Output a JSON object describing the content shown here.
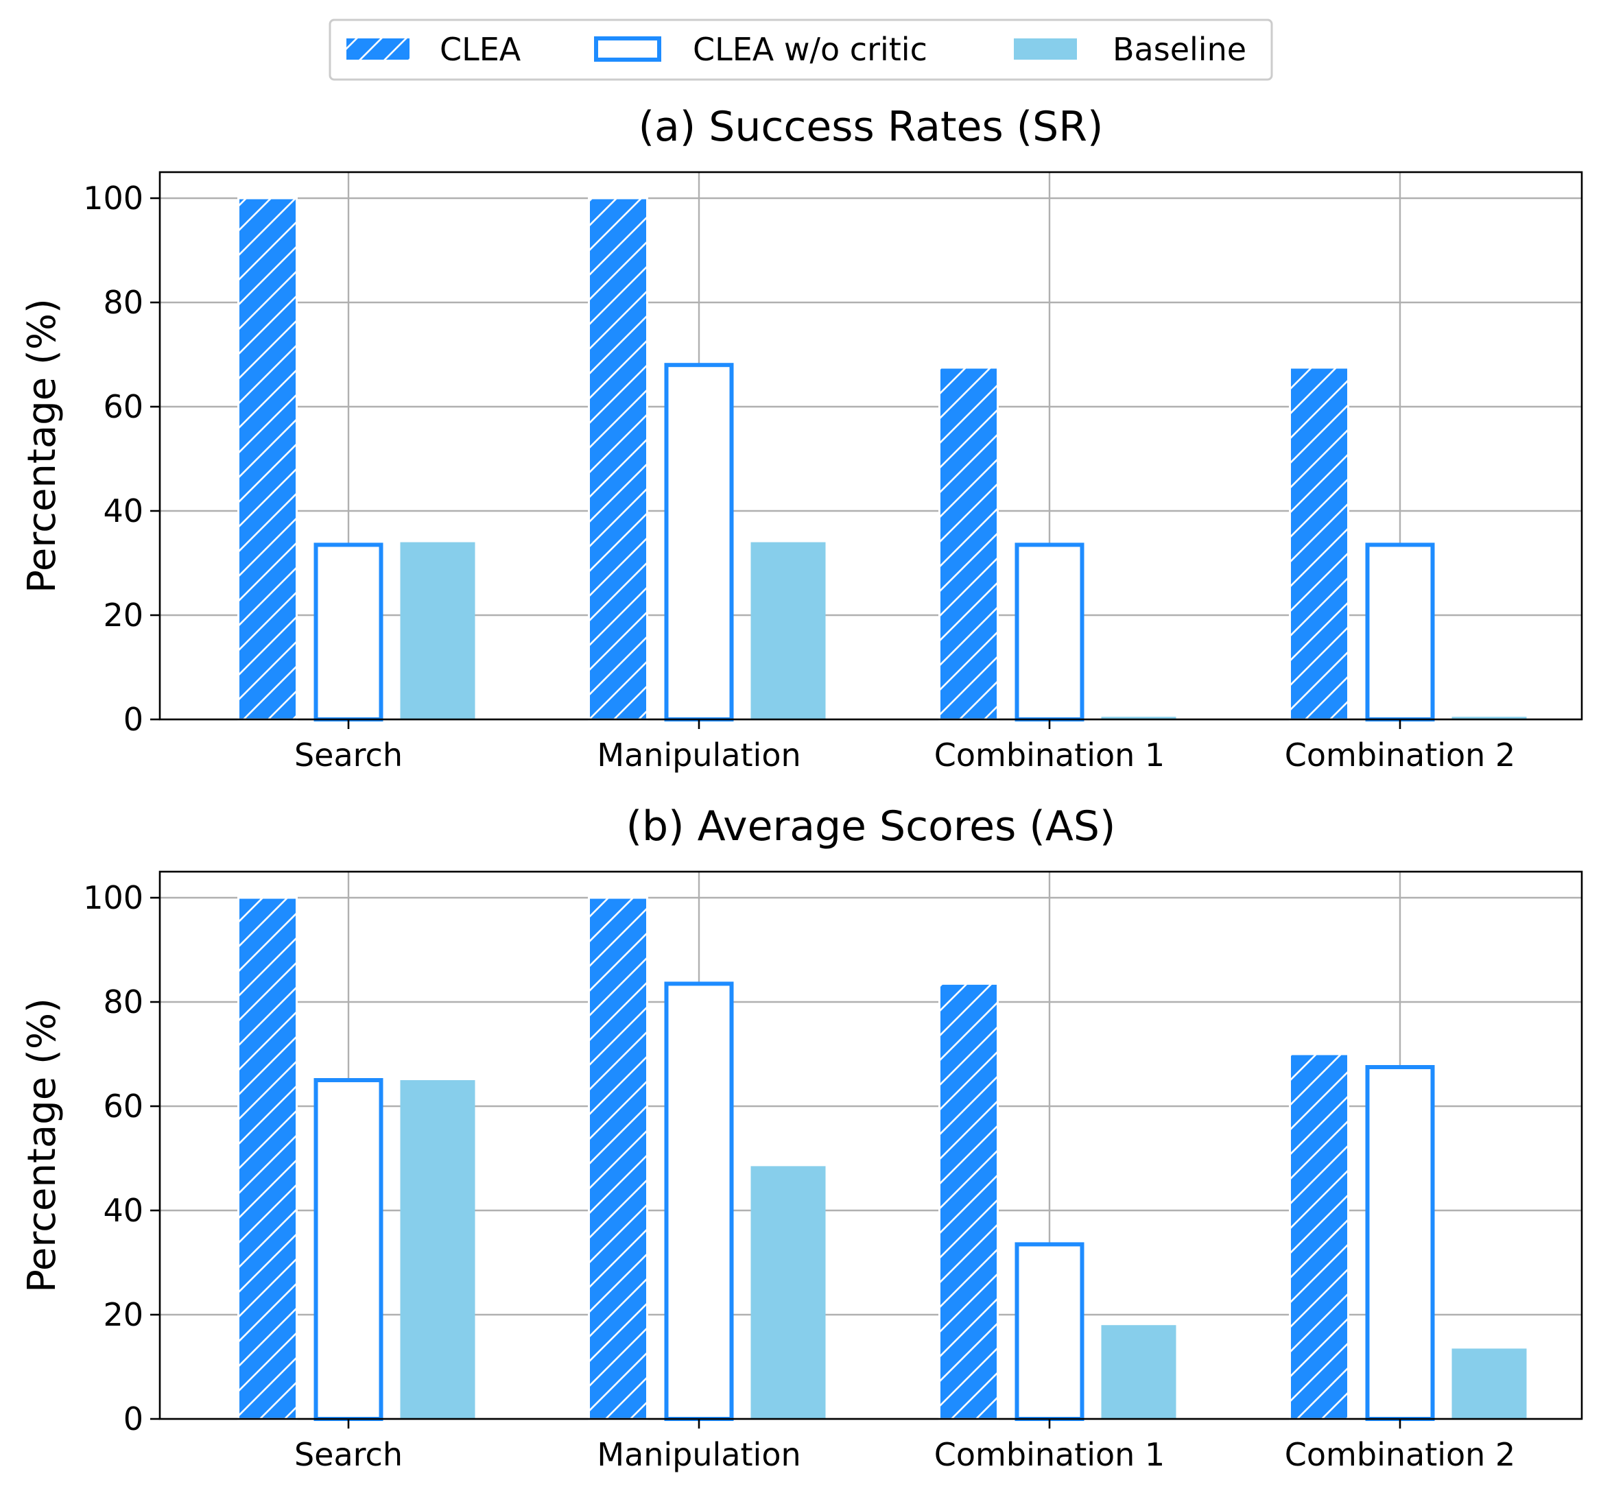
{
  "legend": {
    "entries": [
      {
        "label": "CLEA",
        "style": "hatched",
        "color": "#1E8CFF"
      },
      {
        "label": "CLEA w/o critic",
        "style": "outline",
        "color": "#1E8CFF"
      },
      {
        "label": "Baseline",
        "style": "solid",
        "color": "#87CEEB"
      }
    ],
    "placement": "top-center"
  },
  "chart_data": [
    {
      "type": "bar",
      "title": "(a) Success Rates (SR)",
      "ylabel": "Percentage (%)",
      "xlabel": "",
      "categories": [
        "Search",
        "Manipulation",
        "Combination 1",
        "Combination 2"
      ],
      "ylim": [
        0,
        105
      ],
      "yticks": [
        0,
        20,
        40,
        60,
        80,
        100
      ],
      "grid": true,
      "series": [
        {
          "name": "CLEA",
          "values": [
            100,
            100,
            67.5,
            67.5
          ]
        },
        {
          "name": "CLEA w/o critic",
          "values": [
            33.5,
            68,
            33.5,
            33.5
          ]
        },
        {
          "name": "Baseline",
          "values": [
            34,
            34,
            0.5,
            0.5
          ]
        }
      ]
    },
    {
      "type": "bar",
      "title": "(b) Average Scores (AS)",
      "ylabel": "Percentage (%)",
      "xlabel": "",
      "categories": [
        "Search",
        "Manipulation",
        "Combination 1",
        "Combination 2"
      ],
      "ylim": [
        0,
        105
      ],
      "yticks": [
        0,
        20,
        40,
        60,
        80,
        100
      ],
      "grid": true,
      "series": [
        {
          "name": "CLEA",
          "values": [
            100,
            100,
            83.5,
            70
          ]
        },
        {
          "name": "CLEA w/o critic",
          "values": [
            65,
            83.5,
            33.5,
            67.5
          ]
        },
        {
          "name": "Baseline",
          "values": [
            65,
            48.5,
            18,
            13.5
          ]
        }
      ]
    }
  ]
}
